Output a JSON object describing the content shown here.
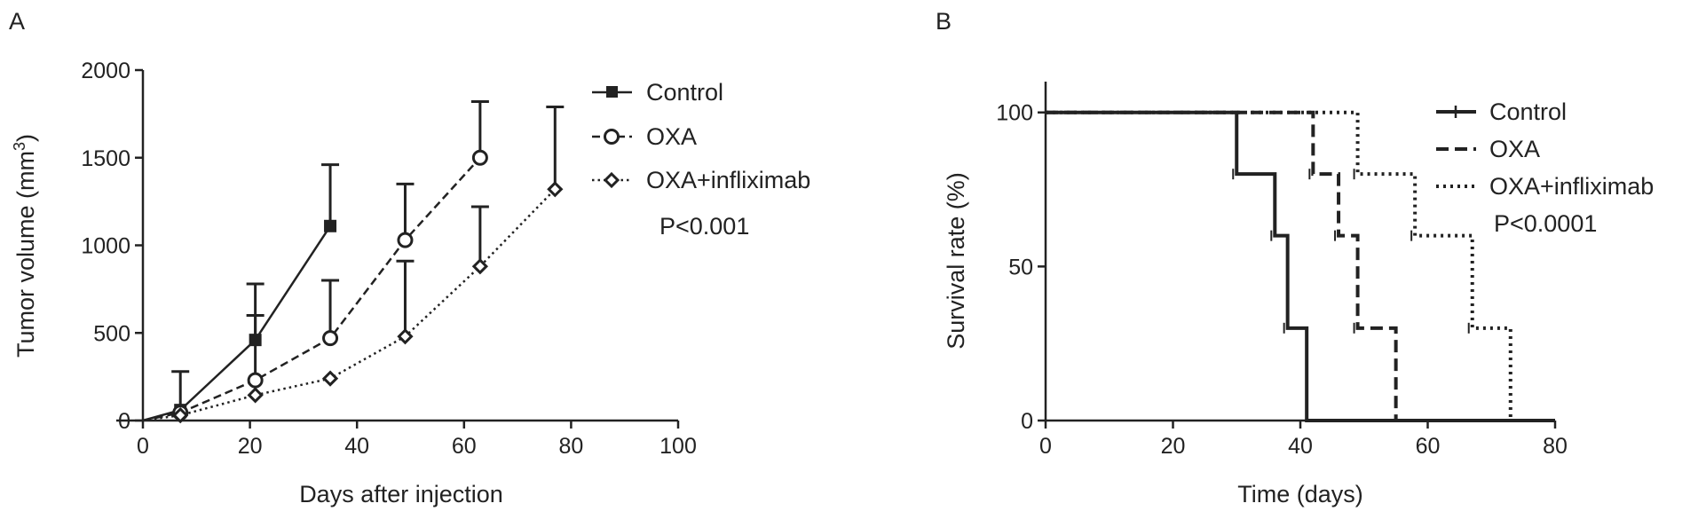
{
  "chart_data": [
    {
      "panel_label": "A",
      "type": "line",
      "xlabel": "Days after injection",
      "ylabel": "Tumor volume (mm",
      "ylabel_sup": "3",
      "ylabel_suffix": ")",
      "xlim": [
        0,
        100
      ],
      "ylim": [
        0,
        2000
      ],
      "xticks": [
        "0",
        "20",
        "40",
        "60",
        "80",
        "100"
      ],
      "yticks": [
        "0",
        "500",
        "1000",
        "1500",
        "2000"
      ],
      "grid": false,
      "legend_position": "top-right",
      "annotation": "P<0.001",
      "series": [
        {
          "name": "Control",
          "style": "solid",
          "marker": "square",
          "x": [
            0,
            7,
            21,
            35
          ],
          "y": [
            0,
            60,
            460,
            1110
          ],
          "error_upper": [
            null,
            280,
            780,
            1460
          ]
        },
        {
          "name": "OXA",
          "style": "dashed",
          "marker": "circle",
          "x": [
            0,
            7,
            21,
            35,
            49,
            63
          ],
          "y": [
            0,
            45,
            230,
            470,
            1030,
            1500
          ],
          "error_upper": [
            null,
            null,
            600,
            800,
            1350,
            1820
          ]
        },
        {
          "name": "OXA+infliximab",
          "style": "dotted",
          "marker": "diamond",
          "x": [
            0,
            7,
            21,
            35,
            49,
            63,
            77
          ],
          "y": [
            0,
            30,
            145,
            240,
            480,
            880,
            1320
          ],
          "error_upper": [
            null,
            null,
            null,
            null,
            910,
            1220,
            1790
          ]
        }
      ]
    },
    {
      "panel_label": "B",
      "type": "line",
      "xlabel": "Time (days)",
      "ylabel": "Survival rate (%)",
      "xlim": [
        0,
        80
      ],
      "ylim": [
        0,
        110
      ],
      "xticks": [
        "0",
        "20",
        "40",
        "60",
        "80"
      ],
      "yticks": [
        "0",
        "50",
        "100"
      ],
      "grid": false,
      "legend_position": "top-right",
      "annotation": "P<0.0001",
      "series": [
        {
          "name": "Control",
          "style": "solid",
          "x": [
            0,
            30,
            36,
            38,
            41
          ],
          "y": [
            100,
            80,
            60,
            30,
            0
          ]
        },
        {
          "name": "OXA",
          "style": "dashed",
          "x": [
            0,
            42,
            46,
            49,
            55
          ],
          "y": [
            100,
            80,
            60,
            30,
            0
          ]
        },
        {
          "name": "OXA+infliximab",
          "style": "dotted",
          "x": [
            0,
            49,
            58,
            67,
            73
          ],
          "y": [
            100,
            80,
            60,
            30,
            0
          ]
        }
      ]
    }
  ]
}
